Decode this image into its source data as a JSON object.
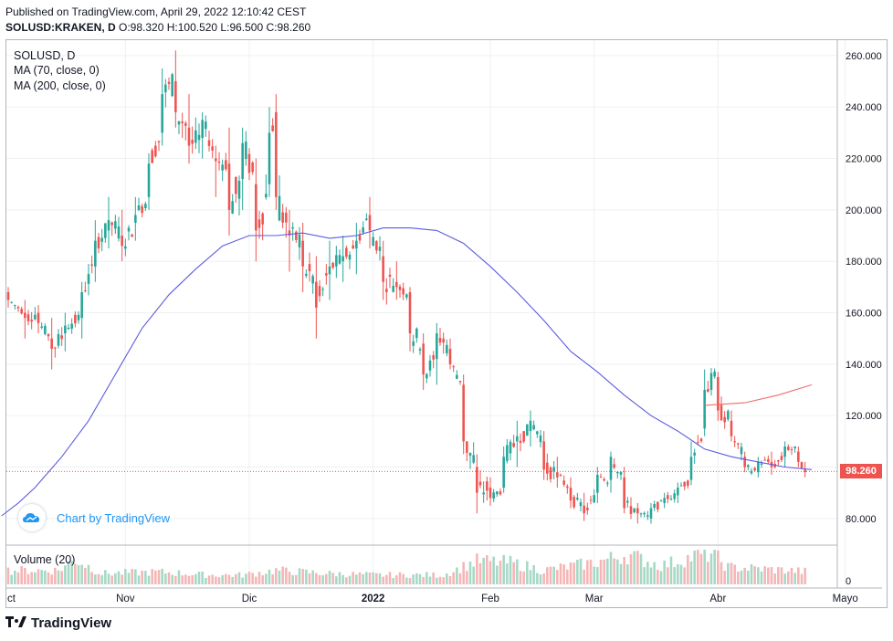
{
  "header": {
    "published": "Published on TradingView.com, April 29, 2022 12:10:42 CEST",
    "symbol": "SOLUSD:KRAKEN, D",
    "ohlc": "O:98.320 H:100.520 L:96.500 C:98.260"
  },
  "legend": {
    "symbol": "SOLUSD, D",
    "ma70": "MA (70, close, 0)",
    "ma200": "MA (200, close, 0)",
    "volume": "Volume (20)"
  },
  "badge": {
    "text": "Chart by TradingView"
  },
  "footer": {
    "brand": "TradingView"
  },
  "last_price_label": "98.260",
  "colors": {
    "up": "#26a69a",
    "down": "#ef5350",
    "ma70": "#5b5ce0",
    "ma200": "#f26b6b",
    "vol_up": "#a6d8c6",
    "vol_down": "#f5b5b5"
  },
  "chart_data": {
    "type": "candlestick",
    "y_axis": {
      "range": [
        70,
        266
      ],
      "ticks": [
        "80.000",
        "100.000",
        "120.000",
        "140.000",
        "160.000",
        "180.000",
        "200.000",
        "220.000",
        "240.000",
        "260.000"
      ]
    },
    "x_axis": {
      "labels": [
        "ct",
        "Nov",
        "Dic",
        "2022",
        "Feb",
        "Mar",
        "Abr",
        "Mayo"
      ]
    },
    "volume_axis": {
      "ticks": [
        "0"
      ]
    },
    "last_price": 98.26,
    "ohlc_anchors": [
      [
        0,
        168,
        170,
        162,
        165
      ],
      [
        5,
        160,
        165,
        150,
        158
      ],
      [
        9,
        160,
        163,
        152,
        156
      ],
      [
        13,
        150,
        158,
        138,
        146
      ],
      [
        17,
        152,
        160,
        145,
        155
      ],
      [
        22,
        158,
        172,
        150,
        168
      ],
      [
        26,
        178,
        196,
        172,
        188
      ],
      [
        30,
        192,
        205,
        185,
        196
      ],
      [
        34,
        190,
        200,
        180,
        186
      ],
      [
        38,
        195,
        205,
        188,
        198
      ],
      [
        42,
        205,
        222,
        200,
        218
      ],
      [
        46,
        230,
        255,
        225,
        245
      ],
      [
        50,
        250,
        262,
        232,
        238
      ],
      [
        54,
        232,
        245,
        218,
        225
      ],
      [
        58,
        228,
        238,
        220,
        235
      ],
      [
        62,
        220,
        225,
        205,
        219
      ],
      [
        66,
        218,
        232,
        190,
        200
      ],
      [
        70,
        212,
        232,
        200,
        226
      ],
      [
        74,
        210,
        220,
        180,
        192
      ],
      [
        78,
        210,
        240,
        205,
        230
      ],
      [
        80,
        238,
        245,
        200,
        205
      ],
      [
        84,
        192,
        200,
        176,
        190
      ],
      [
        88,
        188,
        195,
        168,
        178
      ],
      [
        92,
        172,
        182,
        150,
        162
      ],
      [
        96,
        175,
        188,
        165,
        178
      ],
      [
        100,
        180,
        190,
        172,
        182
      ],
      [
        104,
        185,
        195,
        175,
        188
      ],
      [
        108,
        198,
        205,
        185,
        192
      ],
      [
        112,
        182,
        188,
        165,
        172
      ],
      [
        116,
        172,
        180,
        165,
        170
      ],
      [
        120,
        168,
        170,
        145,
        152
      ],
      [
        124,
        148,
        152,
        130,
        136
      ],
      [
        128,
        142,
        156,
        132,
        152
      ],
      [
        132,
        146,
        150,
        138,
        140
      ],
      [
        136,
        132,
        136,
        105,
        110
      ],
      [
        140,
        100,
        105,
        82,
        90
      ],
      [
        144,
        92,
        96,
        85,
        88
      ],
      [
        148,
        92,
        108,
        90,
        104
      ],
      [
        152,
        110,
        118,
        100,
        112
      ],
      [
        156,
        114,
        122,
        108,
        118
      ],
      [
        160,
        110,
        114,
        95,
        99
      ],
      [
        164,
        98,
        104,
        92,
        96
      ],
      [
        168,
        92,
        96,
        84,
        87
      ],
      [
        172,
        85,
        90,
        79,
        82
      ],
      [
        176,
        90,
        100,
        86,
        97
      ],
      [
        180,
        95,
        106,
        90,
        104
      ],
      [
        184,
        96,
        100,
        82,
        84
      ],
      [
        188,
        84,
        86,
        78,
        82
      ],
      [
        192,
        80,
        86,
        78,
        84
      ],
      [
        196,
        86,
        90,
        84,
        88
      ],
      [
        200,
        89,
        94,
        86,
        92
      ],
      [
        204,
        95,
        110,
        93,
        104
      ],
      [
        208,
        115,
        138,
        112,
        130
      ],
      [
        212,
        135,
        137,
        118,
        122
      ],
      [
        216,
        118,
        122,
        110,
        112
      ],
      [
        220,
        104,
        106,
        98,
        100
      ],
      [
        224,
        98,
        104,
        96,
        102
      ],
      [
        228,
        102,
        106,
        97,
        100
      ],
      [
        232,
        104,
        110,
        100,
        108
      ],
      [
        236,
        106,
        108,
        100,
        102
      ],
      [
        238,
        99,
        102,
        96,
        98
      ]
    ],
    "ma70_anchors": [
      [
        -2,
        81
      ],
      [
        3,
        86
      ],
      [
        8,
        92
      ],
      [
        16,
        104
      ],
      [
        24,
        118
      ],
      [
        32,
        136
      ],
      [
        40,
        154
      ],
      [
        48,
        167
      ],
      [
        56,
        177
      ],
      [
        64,
        186
      ],
      [
        72,
        190
      ],
      [
        80,
        190
      ],
      [
        88,
        191
      ],
      [
        96,
        189
      ],
      [
        104,
        190
      ],
      [
        112,
        193
      ],
      [
        120,
        193
      ],
      [
        128,
        192
      ],
      [
        136,
        187
      ],
      [
        144,
        178
      ],
      [
        152,
        168
      ],
      [
        160,
        157
      ],
      [
        168,
        145
      ],
      [
        176,
        137
      ],
      [
        184,
        128
      ],
      [
        192,
        120
      ],
      [
        200,
        114
      ],
      [
        208,
        107
      ],
      [
        216,
        104
      ],
      [
        224,
        102
      ],
      [
        232,
        100
      ],
      [
        240,
        99
      ]
    ],
    "ma200_anchors": [
      [
        208,
        124
      ],
      [
        220,
        125
      ],
      [
        230,
        128
      ],
      [
        240,
        132
      ]
    ],
    "volume_anchors": [
      [
        0,
        0.45
      ],
      [
        15,
        0.45
      ],
      [
        20,
        0.8
      ],
      [
        28,
        0.35
      ],
      [
        45,
        0.4
      ],
      [
        60,
        0.3
      ],
      [
        70,
        0.3
      ],
      [
        80,
        0.45
      ],
      [
        95,
        0.35
      ],
      [
        110,
        0.3
      ],
      [
        130,
        0.3
      ],
      [
        140,
        0.75
      ],
      [
        150,
        0.7
      ],
      [
        160,
        0.45
      ],
      [
        175,
        0.7
      ],
      [
        185,
        0.95
      ],
      [
        195,
        0.6
      ],
      [
        205,
        0.9
      ],
      [
        210,
        1.0
      ],
      [
        215,
        0.55
      ],
      [
        225,
        0.5
      ],
      [
        240,
        0.4
      ]
    ],
    "x_label_positions": {
      "ct": -1,
      "Nov": 35,
      "Dic": 72,
      "2022": 109,
      "Feb": 144,
      "Mar": 175,
      "Abr": 212,
      "Mayo": 250
    },
    "total_bars": 240
  }
}
